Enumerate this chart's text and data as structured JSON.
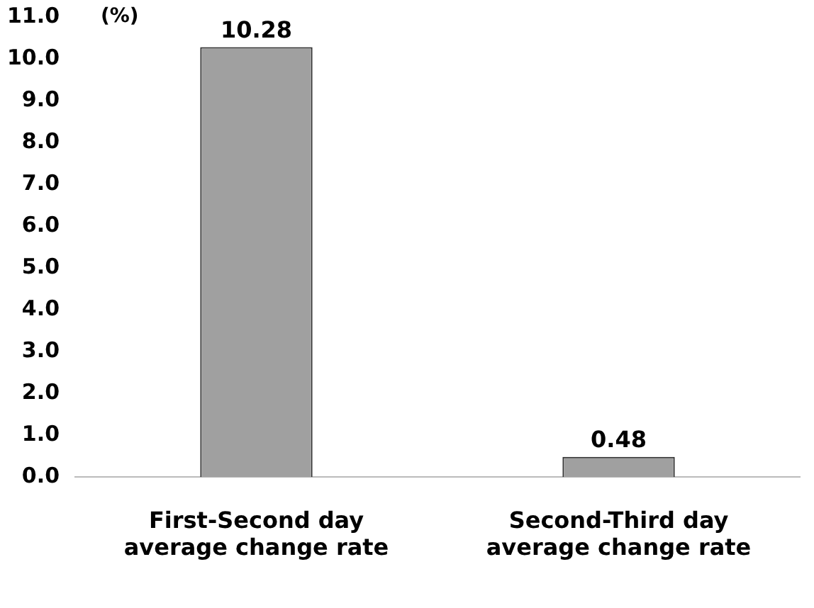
{
  "chart_data": {
    "type": "bar",
    "ylabel": "(%)",
    "categories": [
      "First-Second day average change rate",
      "Second-Third day average change rate"
    ],
    "values": [
      10.28,
      0.48
    ],
    "colors": [
      "#a0a0a0",
      "#a0a0a0"
    ],
    "ylim": [
      0,
      11
    ],
    "yticks": [
      {
        "value": 0,
        "label": "0.0"
      },
      {
        "value": 1,
        "label": "1.0"
      },
      {
        "value": 2,
        "label": "2.0"
      },
      {
        "value": 3,
        "label": "3.0"
      },
      {
        "value": 4,
        "label": "4.0"
      },
      {
        "value": 5,
        "label": "5.0"
      },
      {
        "value": 6,
        "label": "6.0"
      },
      {
        "value": 7,
        "label": "7.0"
      },
      {
        "value": 8,
        "label": "8.0"
      },
      {
        "value": 9,
        "label": "9.0"
      },
      {
        "value": 10,
        "label": "10.0"
      },
      {
        "value": 11,
        "label": "11.0"
      }
    ],
    "data_labels": true,
    "grid": false,
    "legend": false
  }
}
